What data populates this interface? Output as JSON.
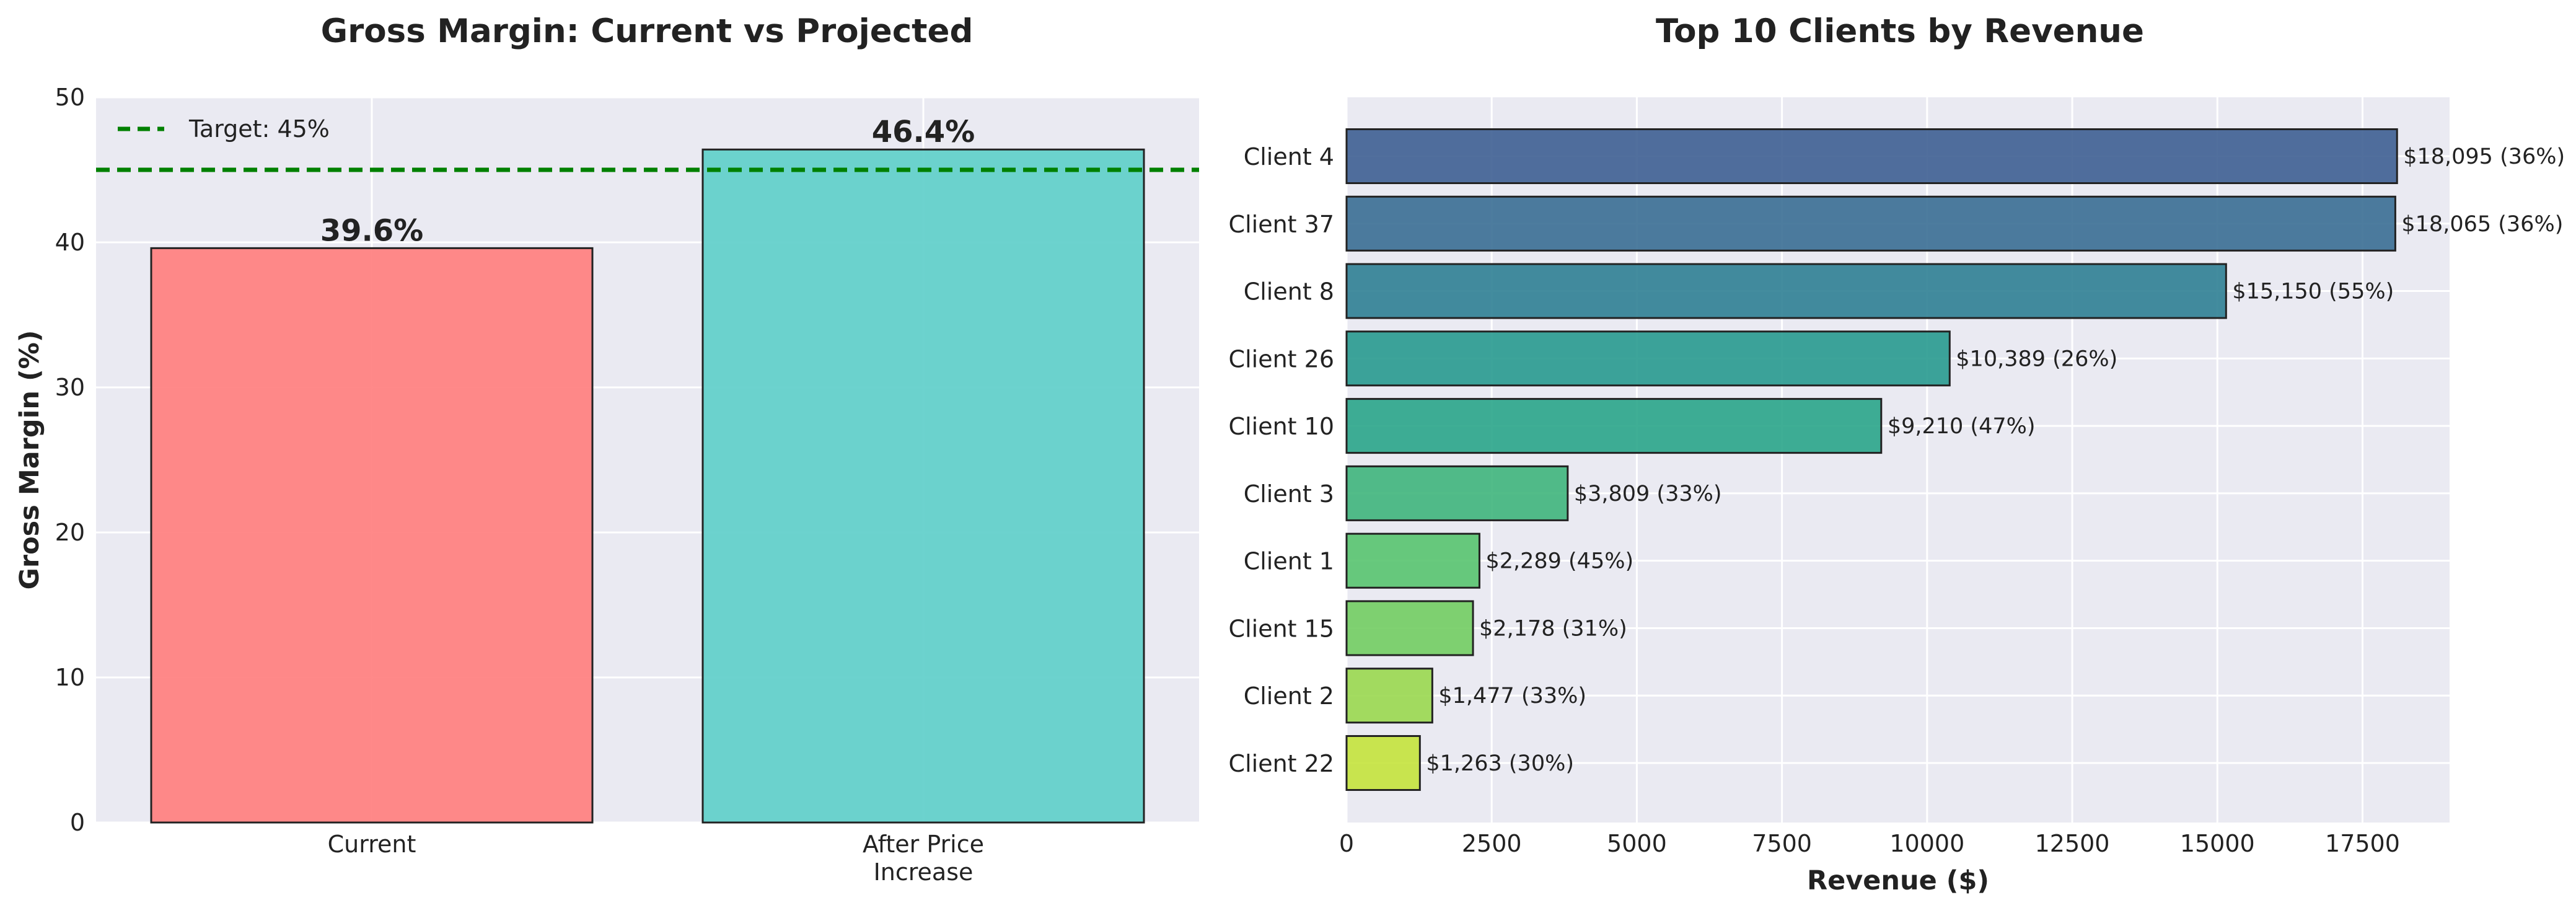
{
  "chart_data": [
    {
      "type": "bar",
      "title": "Gross Margin: Current vs Projected",
      "xlabel": "",
      "ylabel": "Gross Margin (%)",
      "ylim": [
        0,
        50
      ],
      "yticks": [
        0,
        10,
        20,
        30,
        40,
        50
      ],
      "grid": true,
      "categories": [
        "Current",
        "After Price\nIncrease"
      ],
      "values": [
        39.6,
        46.4
      ],
      "value_labels": [
        "39.6%",
        "46.4%"
      ],
      "colors": [
        "#ff7f7f",
        "#5fcfca"
      ],
      "reference_line": {
        "value": 45,
        "label": "Target: 45%",
        "color": "#008000",
        "style": "dashed"
      },
      "legend_position": "top-left"
    },
    {
      "type": "barh",
      "title": "Top 10 Clients by Revenue",
      "xlabel": "Revenue ($)",
      "ylabel": "",
      "xlim": [
        0,
        19000
      ],
      "xticks": [
        0,
        2500,
        5000,
        7500,
        10000,
        12500,
        15000,
        17500
      ],
      "grid": true,
      "categories": [
        "Client 4",
        "Client 37",
        "Client 8",
        "Client 26",
        "Client 10",
        "Client 3",
        "Client 1",
        "Client 15",
        "Client 2",
        "Client 22"
      ],
      "values": [
        18095,
        18065,
        15150,
        10389,
        9210,
        3809,
        2289,
        2178,
        1477,
        1263
      ],
      "value_labels": [
        "$18,095 (36%)",
        "$18,065 (36%)",
        "$15,150 (55%)",
        "$10,389 (26%)",
        "$9,210 (47%)",
        "$3,809 (33%)",
        "$2,289 (45%)",
        "$2,178 (31%)",
        "$1,477 (33%)",
        "$1,263 (30%)"
      ],
      "colors": [
        "#3e5f92",
        "#3a6e94",
        "#2f7f93",
        "#289a8f",
        "#2aa58a",
        "#3fb57c",
        "#58c46f",
        "#72cd62",
        "#9ad84f",
        "#c4e33c"
      ]
    }
  ]
}
